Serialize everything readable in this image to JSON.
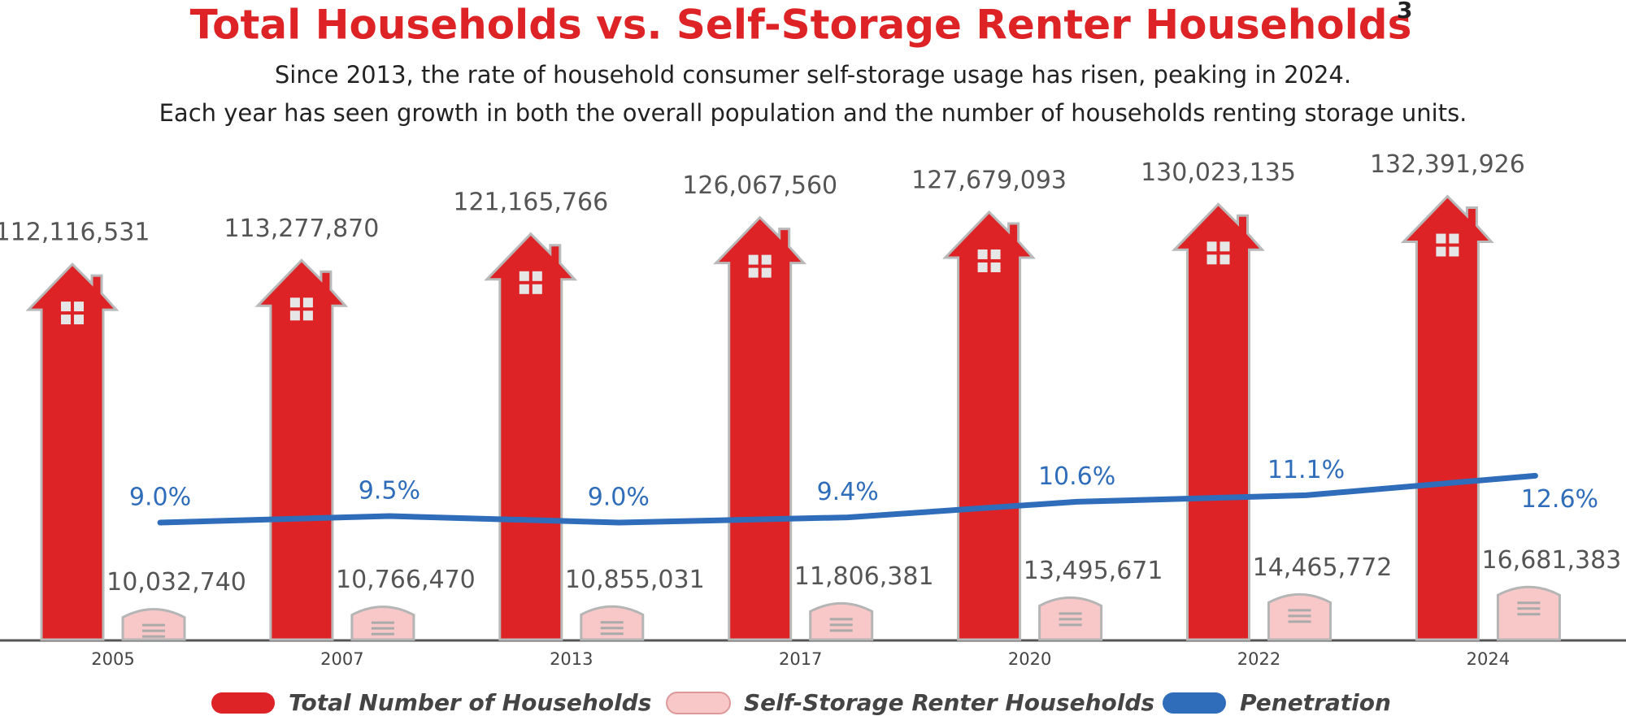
{
  "chart_data": {
    "type": "bar",
    "title": "Total Households vs. Self-Storage Renter Households",
    "title_note": "3",
    "subtitle": [
      "Since 2013, the rate of household consumer self-storage usage has risen, peaking in 2024.",
      "Each year has seen growth in both the overall population and the number of households renting storage units."
    ],
    "categories": [
      "2005",
      "2007",
      "2013",
      "2017",
      "2020",
      "2022",
      "2024"
    ],
    "series": [
      {
        "name": "Total Number of Households",
        "color": "#dd2326",
        "values": [
          112116531,
          113277870,
          121165766,
          126067560,
          127679093,
          130023135,
          132391926
        ],
        "value_labels": [
          "112,116,531",
          "113,277,870",
          "121,165,766",
          "126,067,560",
          "127,679,093",
          "130,023,135",
          "132,391,926"
        ]
      },
      {
        "name": "Self-Storage Renter Households",
        "color": "#f8c8c8",
        "values": [
          10032740,
          10766470,
          10855031,
          11806381,
          13495671,
          14465772,
          16681383
        ],
        "value_labels": [
          "10,032,740",
          "10,766,470",
          "10,855,031",
          "11,806,381",
          "13,495,671",
          "14,465,772",
          "16,681,383"
        ]
      },
      {
        "name": "Penetration",
        "color": "#2f6dba",
        "type": "line",
        "axis": "y2",
        "values": [
          9.0,
          9.5,
          9.0,
          9.4,
          10.6,
          11.1,
          12.6
        ],
        "value_labels": [
          "9.0%",
          "9.5%",
          "9.0%",
          "9.4%",
          "10.6%",
          "11.1%",
          "12.6%"
        ]
      }
    ],
    "legend": "bottom"
  }
}
